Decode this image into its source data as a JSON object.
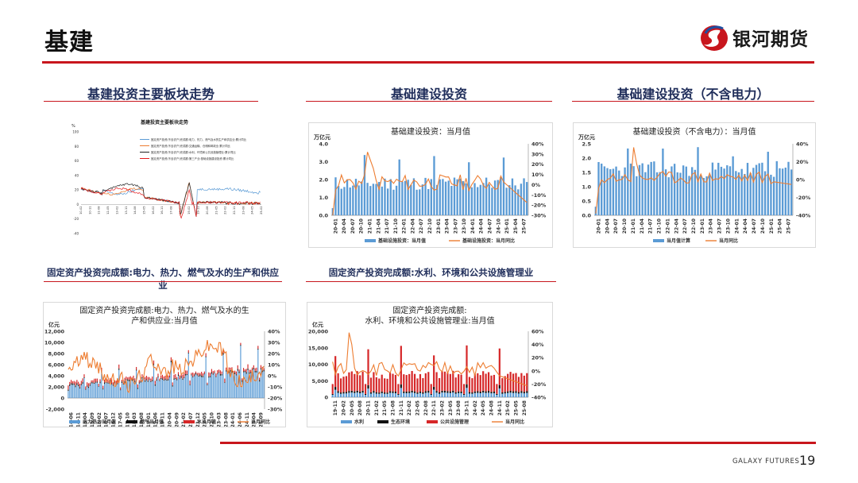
{
  "header": {
    "title": "基建",
    "brand_name": "银河期货",
    "footer_brand": "GALAXY FUTURES",
    "page_number": "19"
  },
  "colors": {
    "accent_red": "#c8161d",
    "navy": "#1f2d5a",
    "bar_blue": "#5b9bd5",
    "line_orange": "#ed7d31"
  },
  "sections": [
    {
      "title": "基建投资主要板块走势"
    },
    {
      "title": "基础建设投资"
    },
    {
      "title": "基础建设投资（不含电力）"
    },
    {
      "title": "固定资产投资完成额:电力、热力、燃气及水的生产和供应业"
    },
    {
      "title": "固定资产投资完成额:水利、环境和公共设施管理业"
    }
  ],
  "charts": [
    {
      "id": "sector-trend",
      "title": "基建投资主要板块走势",
      "unit": "%",
      "legend": [
        "固定资产投资(不含农户)完成额:电力、热力、燃气及水的生产和供应业:累计同比",
        "固定资产投资(不含农户)完成额:交通运输、仓储和邮政业:累计同比",
        "固定资产投资(不含农户)完成额:水利、环境和公共设施管理业:累计同比",
        "固定资产投资(不含农户)完成额:第三产业:基础设施建设投资:累计同比"
      ],
      "y_ticks": [
        "100",
        "80",
        "60",
        "40",
        "20",
        "0",
        "-20",
        "-40"
      ],
      "x_ticks": [
        "10-02",
        "10-11",
        "11-08",
        "12-05",
        "13-02",
        "13-11",
        "14-08",
        "15-05",
        "16-02",
        "16-11",
        "17-08",
        "18-05",
        "19-02",
        "19-11",
        "20-08",
        "21-05",
        "22-02",
        "22-11",
        "23-08",
        "24-05",
        "25-02"
      ]
    },
    {
      "id": "infra-investment",
      "title": "基础建设投资：当月值",
      "unit_left": "万亿元",
      "y_left_ticks": [
        "4.0",
        "3.0",
        "2.0",
        "1.0",
        "0.0"
      ],
      "y_right_ticks": [
        "40%",
        "30%",
        "20%",
        "10%",
        "0%",
        "-10%",
        "-20%",
        "-30%"
      ],
      "x_ticks": [
        "20-01",
        "20-04",
        "20-07",
        "20-10",
        "21-01",
        "21-04",
        "21-07",
        "21-10",
        "22-01",
        "22-04",
        "22-07",
        "22-10",
        "23-01",
        "23-04",
        "23-07",
        "23-10",
        "24-01",
        "24-04",
        "24-07",
        "24-10",
        "25-01",
        "25-04",
        "25-07"
      ],
      "legend": [
        "基础设施投资：当月值",
        "基础设施投资：当月同比"
      ]
    },
    {
      "id": "infra-ex-power",
      "title": "基础建设投资（不含电力）：当月值",
      "unit_left": "万亿元",
      "y_left_ticks": [
        "2.5",
        "2.0",
        "1.5",
        "1.0",
        "0.5",
        "0.0"
      ],
      "y_right_ticks": [
        "40%",
        "20%",
        "0%",
        "-20%",
        "-40%"
      ],
      "x_ticks": [
        "20-01",
        "20-04",
        "20-07",
        "20-10",
        "21-01",
        "21-04",
        "21-07",
        "21-10",
        "22-01",
        "22-04",
        "22-07",
        "22-10",
        "23-01",
        "23-04",
        "23-07",
        "23-10",
        "24-01",
        "24-04",
        "24-07",
        "24-10",
        "25-01",
        "25-04",
        "25-07"
      ],
      "legend": [
        "当月值计算",
        "当月同比"
      ]
    },
    {
      "id": "power-heat-gas-water",
      "title_line1": "固定资产投资完成额:电力、热力、燃气及水的生",
      "title_line2": "产和供应业:当月值",
      "unit_left": "亿元",
      "y_left_ticks": [
        "12,000",
        "10,000",
        "8,000",
        "6,000",
        "4,000",
        "2,000",
        "0",
        "-2,000"
      ],
      "y_right_ticks": [
        "40%",
        "30%",
        "20%",
        "10%",
        "0%",
        "-10%",
        "-20%",
        "-30%"
      ],
      "x_ticks": [
        "14-06",
        "14-11",
        "15-04",
        "15-09",
        "16-02",
        "16-07",
        "16-12",
        "17-05",
        "17-10",
        "18-03",
        "18-08",
        "19-01",
        "19-06",
        "19-11",
        "20-04",
        "20-09",
        "21-02",
        "21-07",
        "21-12",
        "22-05",
        "22-10",
        "23-03",
        "23-08",
        "24-01",
        "24-06",
        "24-11",
        "25-04",
        "25-09"
      ],
      "legend": [
        "电力热力当月值",
        "燃气当月值",
        "水当月值",
        "当月同比"
      ]
    },
    {
      "id": "water-env-public",
      "title_line1": "固定资产投资完成额:",
      "title_line2": "水利、环境和公共设施管理业:当月值",
      "unit_left": "亿元",
      "y_left_ticks": [
        "20,000",
        "15,000",
        "10,000",
        "5,000",
        "0"
      ],
      "y_right_ticks": [
        "60%",
        "40%",
        "20%",
        "0%",
        "-20%",
        "-40%"
      ],
      "x_ticks": [
        "19-11",
        "20-02",
        "20-05",
        "20-08",
        "20-11",
        "21-02",
        "21-05",
        "21-08",
        "21-11",
        "22-02",
        "22-05",
        "22-08",
        "22-11",
        "23-02",
        "23-05",
        "23-08",
        "23-11",
        "24-02",
        "24-05",
        "24-08",
        "24-11",
        "25-02",
        "25-05",
        "25-08"
      ],
      "legend": [
        "水利",
        "生态环境",
        "公共设施管理",
        "当月同比"
      ]
    }
  ]
}
